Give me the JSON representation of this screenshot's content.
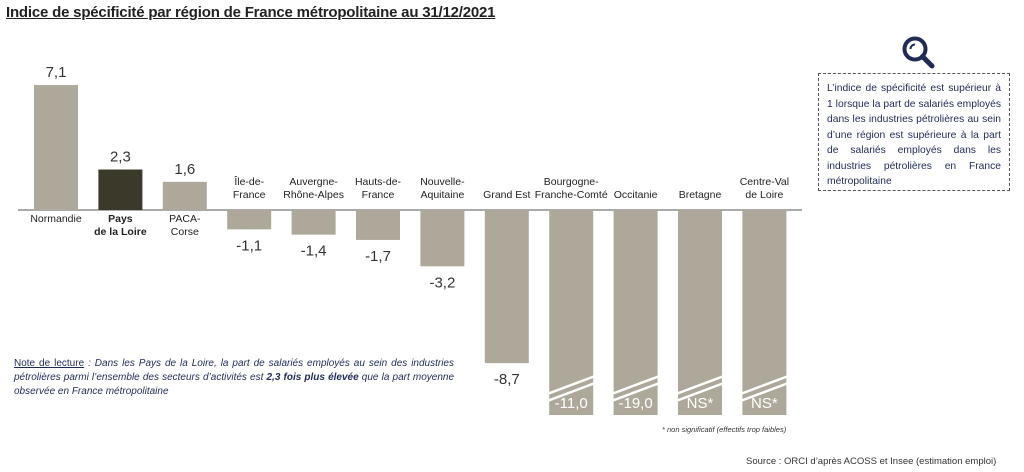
{
  "title": "Indice de spécificité par région de France métropolitaine au 31/12/2021",
  "chart_data": {
    "type": "bar",
    "title": "Indice de spécificité par région de France métropolitaine au 31/12/2021",
    "categories": [
      [
        "Normandie"
      ],
      [
        "Pays",
        "de la Loire"
      ],
      [
        "PACA-",
        "Corse"
      ],
      [
        "Île-de-",
        "France"
      ],
      [
        "Auvergne-",
        "Rhône-Alpes"
      ],
      [
        "Hauts-de-",
        "France"
      ],
      [
        "Nouvelle-",
        "Aquitaine"
      ],
      [
        "Grand Est"
      ],
      [
        "Bourgogne-",
        "Franche-Comté"
      ],
      [
        "Occitanie"
      ],
      [
        "Bretagne"
      ],
      [
        "Centre-Val",
        "de Loire"
      ]
    ],
    "values": [
      7.1,
      2.3,
      1.6,
      -1.1,
      -1.4,
      -1.7,
      -3.2,
      -8.7,
      -11.0,
      -19.0,
      null,
      null
    ],
    "value_labels": [
      "7,1",
      "2,3",
      "1,6",
      "-1,1",
      "-1,4",
      "-1,7",
      "-3,2",
      "-8,7",
      "-11,0",
      "-19,0",
      "NS*",
      "NS*"
    ],
    "highlight": "Pays de la Loire",
    "truncated": [
      "Bourgogne-Franche-Comté",
      "Occitanie",
      "Bretagne",
      "Centre-Val de Loire"
    ],
    "colors": {
      "bar": "#aea89b",
      "highlight": "#3b3a2a"
    }
  },
  "info_box": {
    "text": "L’indice de spécificité est supérieur à 1 lorsque la part de salariés employés dans les industries pétrolières au sein d’une région est supérieure à la part de salariés employés dans les industries pétrolières en France métropolitaine"
  },
  "note": {
    "label": "Note de lecture",
    "text_1": " : Dans les Pays de la Loire, la part de salariés employés au sein des industries pétrolières parmi l’ensemble des secteurs d’activités est ",
    "emphasis": "2,3 fois plus élevée",
    "text_2": " que la part moyenne observée en France métropolitaine"
  },
  "footnote": "* non significatif (effectifs trop faibles)",
  "source": "Source : ORCI d’après ACOSS et Insee (estimation emploi)",
  "icon": "search-icon"
}
